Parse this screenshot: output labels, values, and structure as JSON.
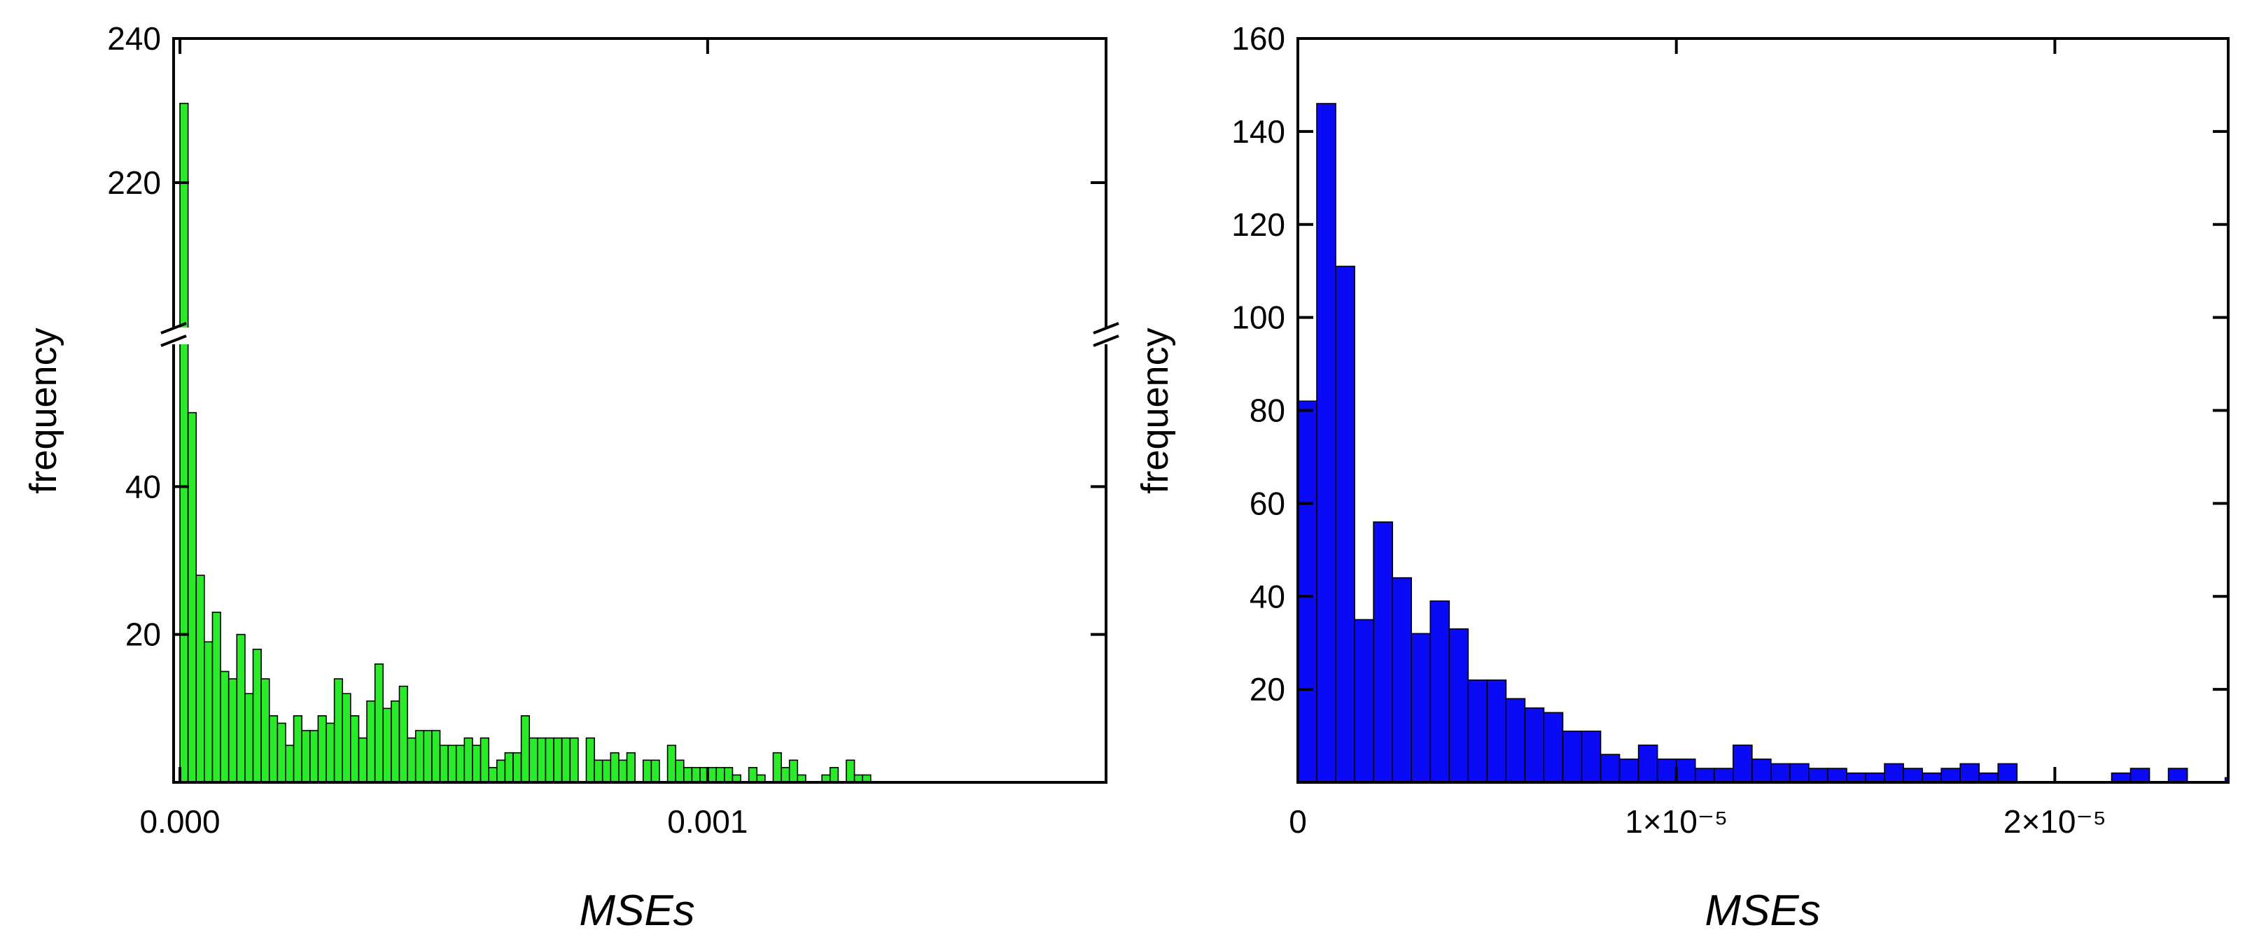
{
  "chart_data": [
    {
      "type": "bar",
      "subtype": "histogram",
      "xlabel": "MSEs",
      "ylabel": "frequency",
      "xlim": [
        -1.2e-05,
        0.001755
      ],
      "bin_width": 1.54e-05,
      "bins_start": 0.0,
      "values": [
        231,
        50,
        28,
        19,
        23,
        15,
        14,
        20,
        12,
        18,
        14,
        9,
        8,
        5,
        9,
        7,
        7,
        9,
        8,
        14,
        12,
        9,
        6,
        11,
        16,
        10,
        11,
        13,
        6,
        7,
        7,
        7,
        5,
        5,
        5,
        6,
        5,
        6,
        2,
        3,
        4,
        4,
        9,
        6,
        6,
        6,
        6,
        6,
        6,
        0,
        6,
        3,
        3,
        4,
        3,
        4,
        0,
        3,
        3,
        0,
        5,
        3,
        2,
        2,
        2,
        2,
        2,
        2,
        1,
        0,
        2,
        1,
        0,
        4,
        2,
        3,
        1,
        0,
        0,
        1,
        2,
        0,
        3,
        1,
        1
      ],
      "y_axis_break": true,
      "y_segments": [
        {
          "range": [
            0,
            60
          ],
          "ticks": [
            20,
            40
          ]
        },
        {
          "range": [
            200,
            240
          ],
          "ticks": [
            220,
            240
          ]
        }
      ],
      "x_ticks": [
        {
          "value": 0.0,
          "label": "0.000"
        },
        {
          "value": 0.001,
          "label": "0.001"
        }
      ],
      "color": "#2AEB2A"
    },
    {
      "type": "bar",
      "subtype": "histogram",
      "xlabel": "MSEs",
      "ylabel": "frequency",
      "xlim": [
        0.0,
        2.458e-05
      ],
      "ylim": [
        0,
        160
      ],
      "bin_width": 5e-07,
      "bins_start": 0.0,
      "values": [
        82,
        146,
        111,
        35,
        56,
        44,
        32,
        39,
        33,
        22,
        22,
        18,
        16,
        15,
        11,
        11,
        6,
        5,
        8,
        5,
        5,
        3,
        3,
        8,
        5,
        4,
        4,
        3,
        3,
        2,
        2,
        4,
        3,
        2,
        3,
        4,
        2,
        4,
        0,
        0,
        0,
        0,
        0,
        2,
        3,
        0,
        3,
        0,
        0,
        1,
        1
      ],
      "y_ticks": [
        20,
        40,
        60,
        80,
        100,
        120,
        140,
        160
      ],
      "x_ticks": [
        {
          "value": 0.0,
          "label": "0"
        },
        {
          "value": 1e-05,
          "label": "1×10⁻⁵"
        },
        {
          "value": 2e-05,
          "label": "2×10⁻⁵"
        }
      ],
      "color": "#0A0AF5"
    }
  ]
}
